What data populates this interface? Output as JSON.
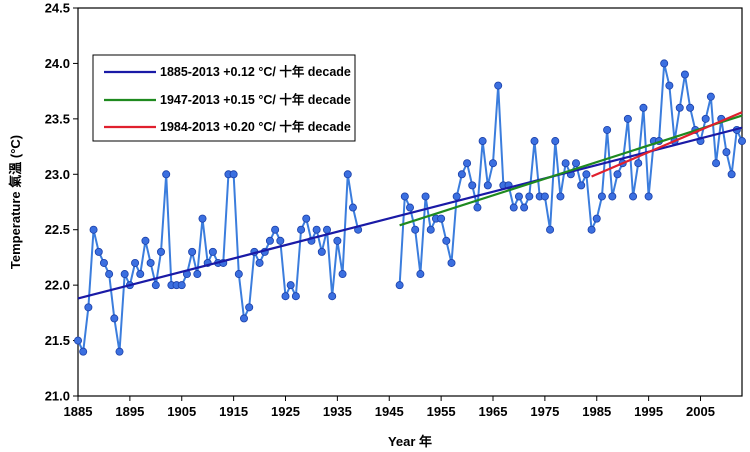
{
  "chart_data": {
    "type": "line",
    "xlabel": "Year 年",
    "ylabel": "Temperature 氣溫 (°C)",
    "xlim": [
      1885,
      2013
    ],
    "ylim": [
      21.0,
      24.5
    ],
    "x_ticks": [
      "1885",
      "1895",
      "1905",
      "1915",
      "1925",
      "1935",
      "1945",
      "1955",
      "1965",
      "1975",
      "1985",
      "1995",
      "2005"
    ],
    "y_ticks": [
      "21.0",
      "21.5",
      "22.0",
      "22.5",
      "23.0",
      "23.5",
      "24.0",
      "24.5"
    ],
    "grid": "none",
    "legend_position": "top-left",
    "legend": [
      {
        "label": "1885-2013 +0.12 °C/ 十年 decade",
        "color": "#1a1aa6"
      },
      {
        "label": "1947-2013 +0.15 °C/ 十年 decade",
        "color": "#1f8a1f"
      },
      {
        "label": "1984-2013 +0.20 °C/ 十年 decade",
        "color": "#e0202e"
      }
    ],
    "series": [
      {
        "style": "line-markers",
        "color": "#3b7ddd",
        "segments": [
          {
            "x": [
              1885,
              1886,
              1887,
              1888,
              1889,
              1890,
              1891,
              1892,
              1893,
              1894,
              1895,
              1896,
              1897,
              1898,
              1899,
              1900,
              1901,
              1902,
              1903,
              1904,
              1905,
              1906,
              1907,
              1908,
              1909,
              1910,
              1911,
              1912,
              1913,
              1914,
              1915,
              1916,
              1917,
              1918,
              1919,
              1920,
              1921,
              1922,
              1923,
              1924,
              1925,
              1926,
              1927,
              1928,
              1929,
              1930,
              1931,
              1932,
              1933,
              1934,
              1935,
              1936,
              1937,
              1938,
              1939
            ],
            "y": [
              21.5,
              21.4,
              21.8,
              22.5,
              22.3,
              22.2,
              22.1,
              21.7,
              21.4,
              22.1,
              22.0,
              22.2,
              22.1,
              22.4,
              22.2,
              22.0,
              22.3,
              23.0,
              22.0,
              22.0,
              22.0,
              22.1,
              22.3,
              22.1,
              22.6,
              22.2,
              22.3,
              22.2,
              22.2,
              23.0,
              23.0,
              22.1,
              21.7,
              21.8,
              22.3,
              22.2,
              22.3,
              22.4,
              22.5,
              22.4,
              21.9,
              22.0,
              21.9,
              22.5,
              22.6,
              22.4,
              22.5,
              22.3,
              22.5,
              21.9,
              22.4,
              22.1,
              23.0,
              22.7,
              22.5
            ]
          },
          {
            "x": [
              1947,
              1948,
              1949,
              1950,
              1951,
              1952,
              1953,
              1954,
              1955,
              1956,
              1957,
              1958,
              1959,
              1960,
              1961,
              1962,
              1963,
              1964,
              1965,
              1966,
              1967,
              1968,
              1969,
              1970,
              1971,
              1972,
              1973,
              1974,
              1975,
              1976,
              1977,
              1978,
              1979,
              1980,
              1981,
              1982,
              1983,
              1984,
              1985,
              1986,
              1987,
              1988,
              1989,
              1990,
              1991,
              1992,
              1993,
              1994,
              1995,
              1996,
              1997,
              1998,
              1999,
              2000,
              2001,
              2002,
              2003,
              2004,
              2005,
              2006,
              2007,
              2008,
              2009,
              2010,
              2011,
              2012,
              2013
            ],
            "y": [
              22.0,
              22.8,
              22.7,
              22.5,
              22.1,
              22.8,
              22.5,
              22.6,
              22.6,
              22.4,
              22.2,
              22.8,
              23.0,
              23.1,
              22.9,
              22.7,
              23.3,
              22.9,
              23.1,
              23.8,
              22.9,
              22.9,
              22.7,
              22.8,
              22.7,
              22.8,
              23.3,
              22.8,
              22.8,
              22.5,
              23.3,
              22.8,
              23.1,
              23.0,
              23.1,
              22.9,
              23.0,
              22.5,
              22.6,
              22.8,
              23.4,
              22.8,
              23.0,
              23.1,
              23.5,
              22.8,
              23.1,
              23.6,
              22.8,
              23.3,
              23.3,
              24.0,
              23.8,
              23.3,
              23.6,
              23.9,
              23.6,
              23.4,
              23.3,
              23.5,
              23.7,
              23.1,
              23.5,
              23.2,
              23.0,
              23.4,
              23.3
            ]
          }
        ]
      }
    ],
    "trend_lines": [
      {
        "name": "1885-2013 +0.12 °C/ 十年 decade",
        "color": "#1a1aa6",
        "x": [
          1885,
          2013
        ],
        "y": [
          21.88,
          23.42
        ]
      },
      {
        "name": "1947-2013 +0.15 °C/ 十年 decade",
        "color": "#1f8a1f",
        "x": [
          1947,
          2013
        ],
        "y": [
          22.54,
          23.53
        ]
      },
      {
        "name": "1984-2013 +0.20 °C/ 十年 decade",
        "color": "#e0202e",
        "x": [
          1984,
          2013
        ],
        "y": [
          22.98,
          23.56
        ]
      }
    ]
  }
}
